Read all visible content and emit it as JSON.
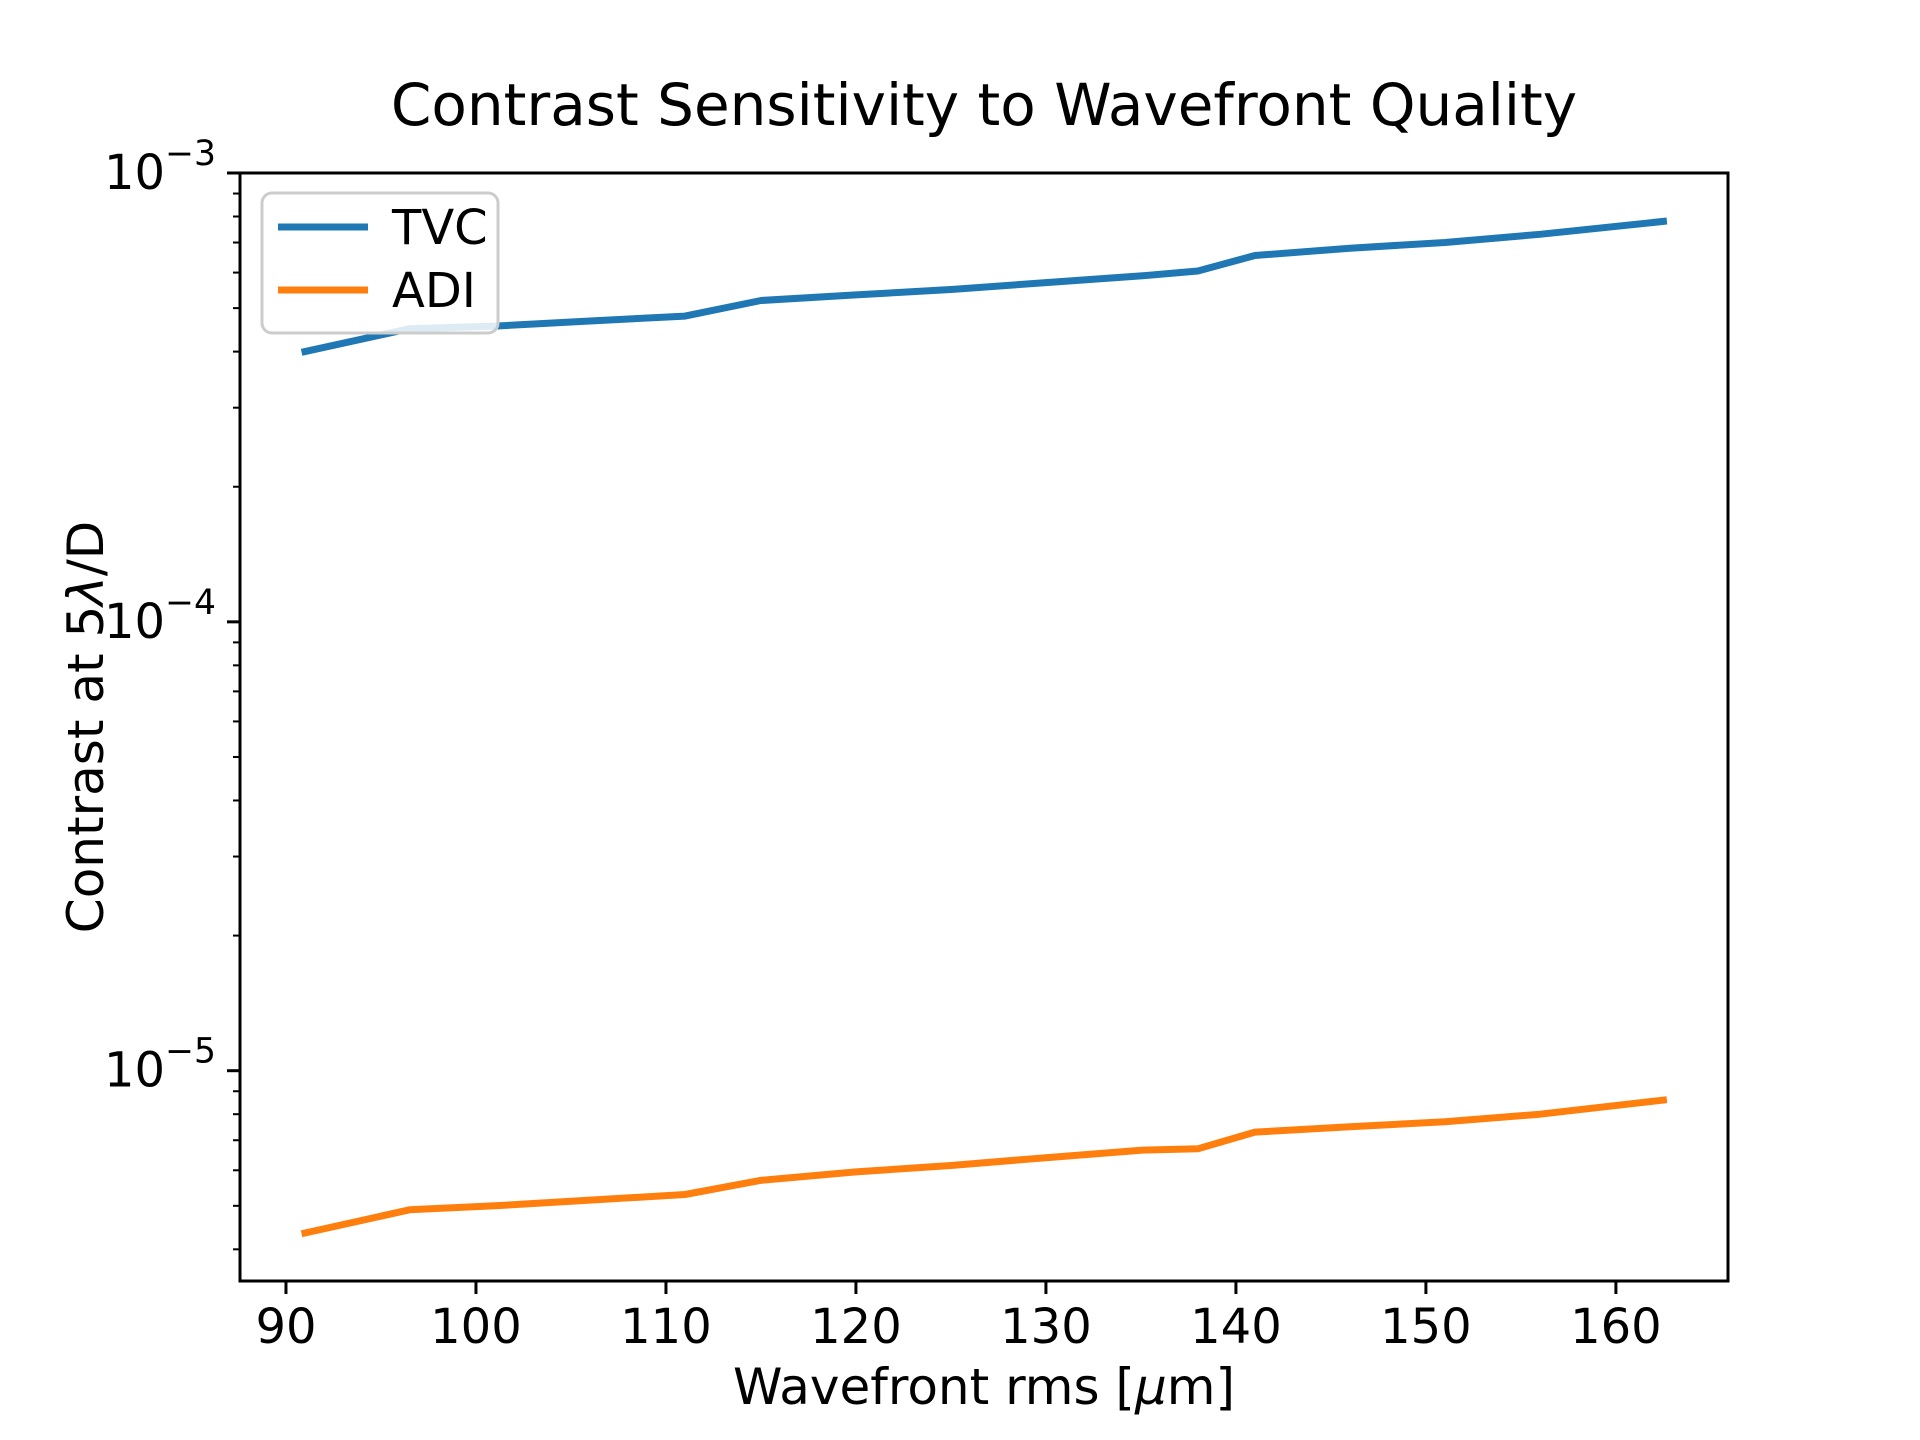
{
  "chart_data": {
    "type": "line",
    "title": "Contrast Sensitivity to Wavefront Quality",
    "xlabel": "Wavefront rms [μm]",
    "ylabel": "Contrast at 5λ/D",
    "xlabel_parts": [
      {
        "text": "Wavefront rms ["
      },
      {
        "text": "μ",
        "italic": true
      },
      {
        "text": "m]"
      }
    ],
    "ylabel_parts": [
      {
        "text": "Contrast at 5"
      },
      {
        "text": "λ",
        "italic": true
      },
      {
        "text": "/D"
      }
    ],
    "x": [
      91,
      96.5,
      101,
      106,
      111,
      115,
      120,
      125,
      130,
      135,
      138,
      141,
      146,
      151,
      156,
      162.5
    ],
    "series": [
      {
        "name": "TVC",
        "color": "#1f77b4",
        "values": [
          0.0004,
          0.00045,
          0.000456,
          0.000468,
          0.00048,
          0.00052,
          0.000535,
          0.00055,
          0.00057,
          0.00059,
          0.000605,
          0.000655,
          0.00068,
          0.0007,
          0.00073,
          0.00078
        ]
      },
      {
        "name": "ADI",
        "color": "#ff7f0e",
        "values": [
          4.35e-06,
          4.9e-06,
          5e-06,
          5.15e-06,
          5.3e-06,
          5.7e-06,
          5.95e-06,
          6.15e-06,
          6.4e-06,
          6.65e-06,
          6.7e-06,
          7.3e-06,
          7.5e-06,
          7.7e-06,
          8e-06,
          8.6e-06
        ]
      }
    ],
    "xlim": [
      87.58,
      165.9
    ],
    "ylim": [
      3.4e-06,
      0.001
    ],
    "yscale": "log",
    "grid": false,
    "legend_position": "upper left",
    "xticks": [
      {
        "value": 90,
        "label": "90"
      },
      {
        "value": 100,
        "label": "100"
      },
      {
        "value": 110,
        "label": "110"
      },
      {
        "value": 120,
        "label": "120"
      },
      {
        "value": 130,
        "label": "130"
      },
      {
        "value": 140,
        "label": "140"
      },
      {
        "value": 150,
        "label": "150"
      },
      {
        "value": 160,
        "label": "160"
      }
    ],
    "yticks": [
      {
        "value": 0.001,
        "base": "10",
        "exp": "−3"
      },
      {
        "value": 0.0001,
        "base": "10",
        "exp": "−4"
      },
      {
        "value": 1e-05,
        "base": "10",
        "exp": "−5"
      }
    ],
    "colors": {
      "spine": "#000000",
      "tick": "#000000",
      "legend_border": "#cccccc",
      "legend_bg": "#ffffff"
    }
  }
}
